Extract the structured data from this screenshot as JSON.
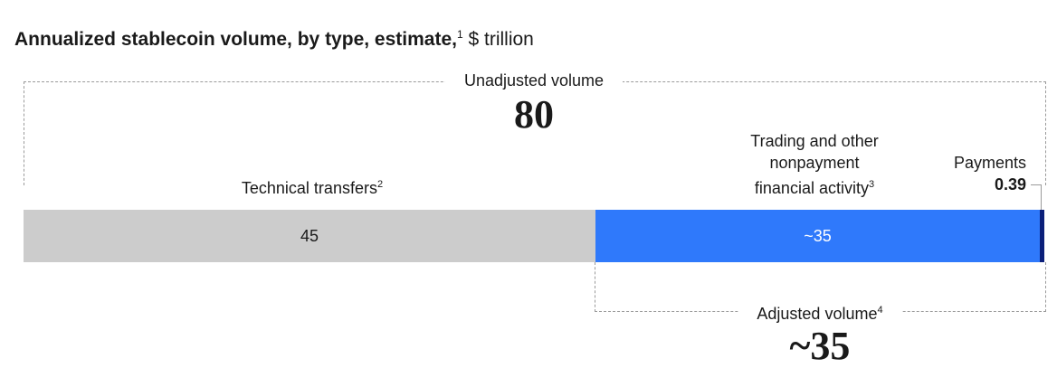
{
  "title": {
    "main": "Annualized stablecoin volume, by type, estimate,",
    "footnote": "1",
    "unit": " $ trillion"
  },
  "unadjusted": {
    "label": "Unadjusted volume",
    "value": "80"
  },
  "adjusted": {
    "label": "Adjusted volume",
    "footnote": "4",
    "value": "~35"
  },
  "segments": {
    "technical": {
      "label": "Technical transfers",
      "footnote": "2",
      "value_label": "45"
    },
    "trading": {
      "line1": "Trading and other",
      "line2": "nonpayment",
      "line3": "financial activity",
      "footnote": "3",
      "value_label": "~35"
    },
    "payments": {
      "label": "Payments",
      "value_label": "0.39"
    }
  },
  "colors": {
    "technical": "#cccccc",
    "trading": "#2f79fb",
    "payments": "#0b1f7a"
  },
  "chart_data": {
    "type": "bar",
    "orientation": "horizontal-stacked",
    "title": "Annualized stablecoin volume, by type, estimate, $ trillion",
    "categories": [
      "Technical transfers",
      "Trading and other nonpayment financial activity",
      "Payments"
    ],
    "values": [
      45,
      35,
      0.39
    ],
    "total_unadjusted": 80,
    "total_adjusted": 35
  }
}
